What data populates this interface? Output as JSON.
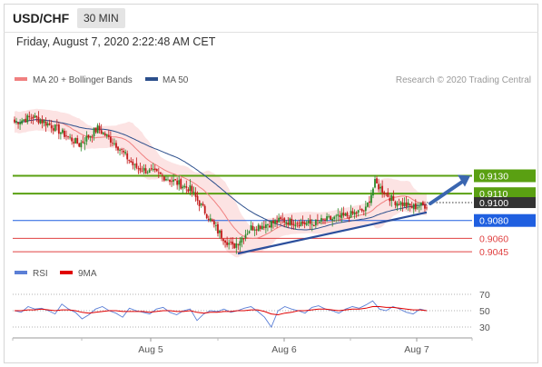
{
  "header": {
    "symbol": "USD/CHF",
    "timeframe": "30 MIN"
  },
  "datetime": "Friday, August 7, 2020 2:22:48 AM CET",
  "legend": {
    "ma_bb": "MA 20 + Bollinger Bands",
    "ma50": "MA 50",
    "credit": "Research © 2020 Trading Central"
  },
  "rsi_legend": {
    "rsi": "RSI",
    "ma": "9MA"
  },
  "colors": {
    "candle_up": "#2a8a2a",
    "candle_down": "#c21a1a",
    "resistance": "#5aa012",
    "pivot": "#1f5fe0",
    "support": "#e04040",
    "bb_fill": "#fbd9d9",
    "ma20": "#f08080",
    "ma50": "#2c4f8c",
    "rsi": "#5b7fd6",
    "rsi_ma": "#e00000",
    "trend": "#2c4f9c",
    "current": "#333333"
  },
  "chart_data": [
    {
      "type": "candlestick",
      "title": "",
      "x_ticks": [
        "Aug 5",
        "Aug 6",
        "Aug 7"
      ],
      "ylim": [
        0.9035,
        0.9225
      ],
      "current_price_label": "0.9100",
      "levels": [
        {
          "label": "0.9130",
          "value": 0.913,
          "role": "resistance"
        },
        {
          "label": "0.9110",
          "value": 0.911,
          "role": "resistance"
        },
        {
          "label": "0.9080",
          "value": 0.908,
          "role": "pivot"
        },
        {
          "label": "0.9060",
          "value": 0.906,
          "role": "support"
        },
        {
          "label": "0.9045",
          "value": 0.9045,
          "role": "support"
        }
      ],
      "close_anchors": [
        {
          "x": 0,
          "y": 0.919
        },
        {
          "x": 10,
          "y": 0.9196
        },
        {
          "x": 20,
          "y": 0.9186
        },
        {
          "x": 35,
          "y": 0.9165
        },
        {
          "x": 45,
          "y": 0.9183
        },
        {
          "x": 55,
          "y": 0.9165
        },
        {
          "x": 65,
          "y": 0.914
        },
        {
          "x": 80,
          "y": 0.913
        },
        {
          "x": 95,
          "y": 0.9115
        },
        {
          "x": 110,
          "y": 0.9068
        },
        {
          "x": 118,
          "y": 0.905
        },
        {
          "x": 128,
          "y": 0.9072
        },
        {
          "x": 145,
          "y": 0.908
        },
        {
          "x": 160,
          "y": 0.9076
        },
        {
          "x": 172,
          "y": 0.9082
        },
        {
          "x": 180,
          "y": 0.9085
        },
        {
          "x": 190,
          "y": 0.9092
        },
        {
          "x": 195,
          "y": 0.9122
        },
        {
          "x": 205,
          "y": 0.9102
        },
        {
          "x": 215,
          "y": 0.9095
        },
        {
          "x": 222,
          "y": 0.9097
        }
      ],
      "projection": {
        "from": 0.9099,
        "to": 0.9128
      },
      "trendline": {
        "from": 0.9043,
        "to": 0.9089
      }
    },
    {
      "type": "line",
      "title": "",
      "yticks": [
        70,
        50,
        30
      ],
      "ylim": [
        20,
        80
      ],
      "series": [
        {
          "name": "RSI",
          "values": [
            50,
            48,
            55,
            52,
            53,
            50,
            46,
            58,
            52,
            48,
            40,
            45,
            52,
            55,
            50,
            47,
            42,
            53,
            50,
            48,
            46,
            52,
            54,
            48,
            45,
            50,
            52,
            38,
            46,
            50,
            49,
            52,
            48,
            50,
            53,
            55,
            49,
            42,
            30,
            50,
            55,
            52,
            50,
            47,
            54,
            56,
            52,
            50,
            47,
            52,
            55,
            53,
            57,
            62,
            52,
            50,
            55,
            52,
            48,
            46,
            52,
            50
          ]
        },
        {
          "name": "9MA",
          "values": [
            50,
            50,
            51,
            51,
            52,
            51,
            50,
            51,
            51,
            50,
            48,
            47,
            48,
            49,
            50,
            50,
            49,
            49,
            49,
            49,
            48,
            49,
            50,
            50,
            49,
            49,
            50,
            48,
            47,
            48,
            48,
            49,
            49,
            50,
            50,
            51,
            51,
            49,
            46,
            45,
            47,
            48,
            50,
            50,
            51,
            52,
            52,
            51,
            50,
            51,
            52,
            52,
            53,
            55,
            55,
            54,
            54,
            53,
            52,
            51,
            51,
            50
          ]
        }
      ]
    }
  ]
}
